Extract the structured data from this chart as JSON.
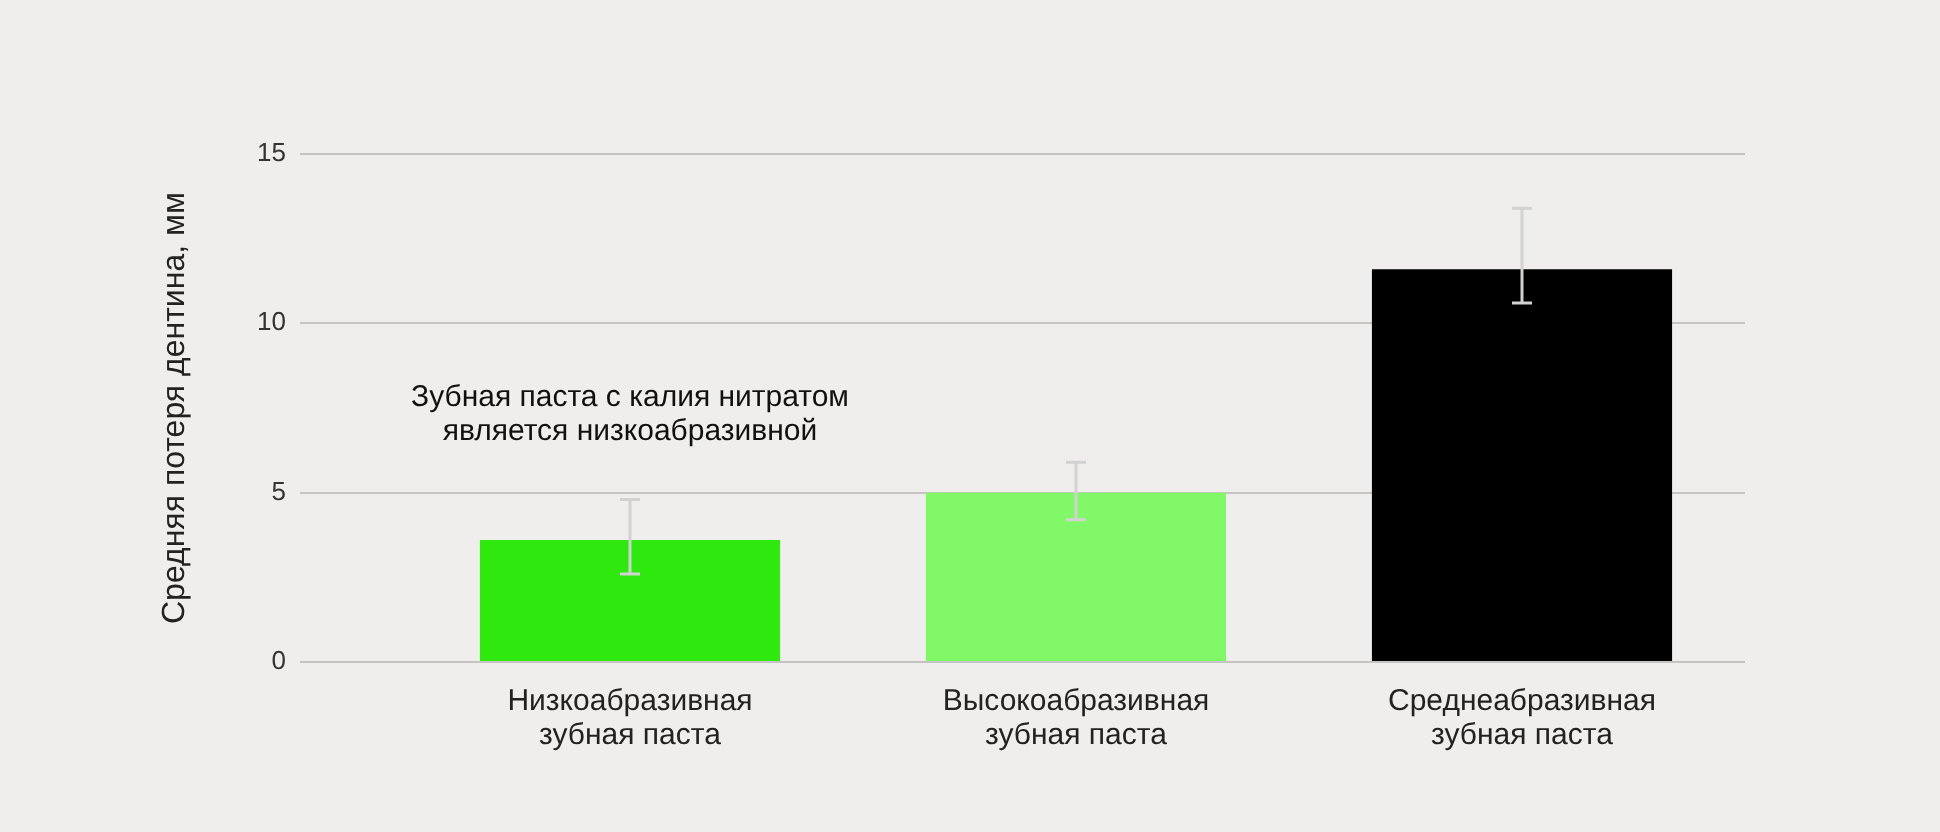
{
  "chart_data": {
    "type": "bar",
    "ylabel": "Средняя потеря дентина, мм",
    "categories": [
      "Низкоабразивная зубная паста",
      "Высокоабразивная зубная паста",
      "Среднеабразивная зубная паста"
    ],
    "values": [
      3.6,
      5.0,
      11.6
    ],
    "colors": [
      "#2ee80e",
      "#80f868",
      "#000000"
    ],
    "errors": [
      [
        2.6,
        4.8
      ],
      [
        4.2,
        5.9
      ],
      [
        10.6,
        13.4
      ]
    ],
    "ylim": [
      0,
      15
    ],
    "yticks": [
      0,
      5,
      10,
      15
    ],
    "grid": "y",
    "annotations": [
      "Зубная паста с калия нитратом является низкоабразивной"
    ]
  }
}
